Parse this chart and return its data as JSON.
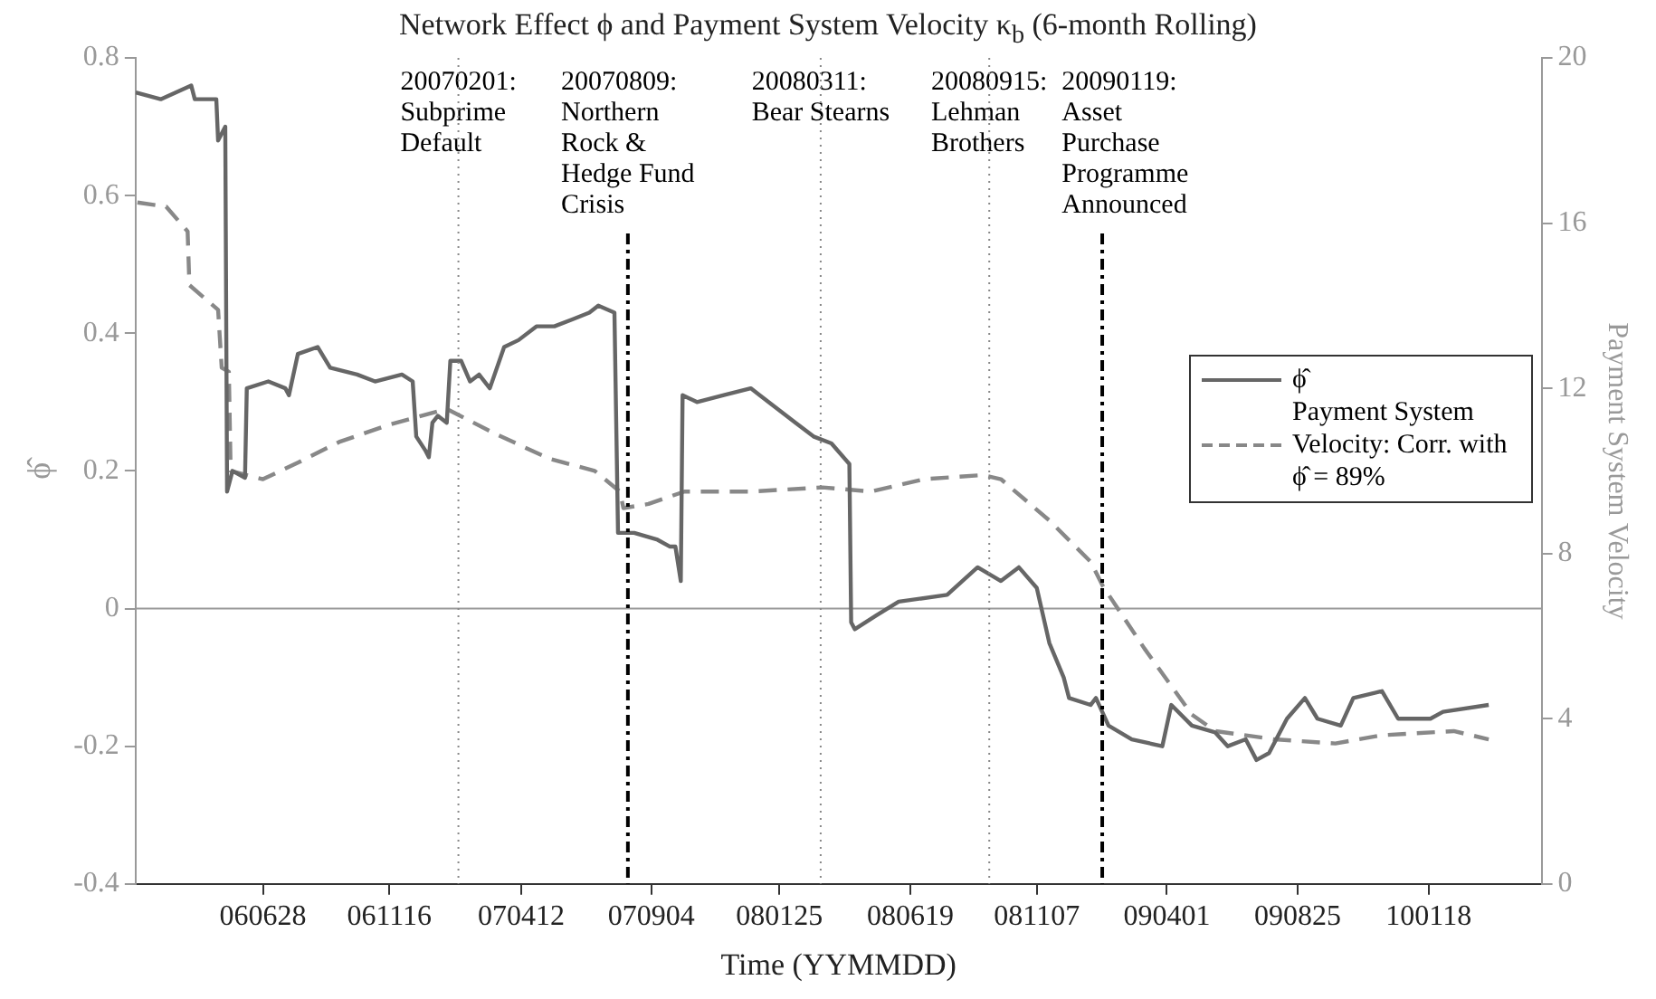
{
  "chart_data": {
    "type": "line",
    "title": "Network Effect ϕ and Payment System Velocity κ$_{b}$ (6-month Rolling)",
    "xlabel": "Time (YYMMDD)",
    "ylabel": "ϕ̂",
    "y2label": "Payment System Velocity",
    "xlim": [
      "2006-02-06",
      "2010-05-24"
    ],
    "xticks": [
      {
        "value": "2006-06-28",
        "label": "060628"
      },
      {
        "value": "2006-11-16",
        "label": "061116"
      },
      {
        "value": "2007-04-12",
        "label": "070412"
      },
      {
        "value": "2007-09-04",
        "label": "070904"
      },
      {
        "value": "2008-01-25",
        "label": "080125"
      },
      {
        "value": "2008-06-19",
        "label": "080619"
      },
      {
        "value": "2008-11-07",
        "label": "081107"
      },
      {
        "value": "2009-04-01",
        "label": "090401"
      },
      {
        "value": "2009-08-25",
        "label": "090825"
      },
      {
        "value": "2010-01-18",
        "label": "100118"
      }
    ],
    "ylim": [
      -0.4,
      0.8
    ],
    "yticks": [
      -0.4,
      -0.2,
      0,
      0.2,
      0.4,
      0.6,
      0.8
    ],
    "y2lim": [
      0,
      20
    ],
    "y2ticks": [
      0,
      4,
      8,
      12,
      16,
      20
    ],
    "grid": false,
    "legend": "right",
    "series": [
      {
        "name": "ϕ̂",
        "color": "#666666",
        "line_style": "solid",
        "x": [
          "2006-02-06",
          "2006-03-06",
          "2006-04-09",
          "2006-04-13",
          "2006-05-07",
          "2006-05-09",
          "2006-05-17",
          "2006-05-19",
          "2006-05-25",
          "2006-06-08",
          "2006-06-10",
          "2006-07-04",
          "2006-07-23",
          "2006-07-27",
          "2006-08-06",
          "2006-08-28",
          "2006-09-11",
          "2006-10-11",
          "2006-10-31",
          "2006-11-30",
          "2006-12-12",
          "2006-12-16",
          "2006-12-26",
          "2006-12-30",
          "2007-01-03",
          "2007-01-09",
          "2007-01-19",
          "2007-01-23",
          "2007-02-04",
          "2007-02-14",
          "2007-02-24",
          "2007-03-08",
          "2007-03-24",
          "2007-04-09",
          "2007-04-29",
          "2007-05-19",
          "2007-06-08",
          "2007-06-27",
          "2007-07-07",
          "2007-07-25",
          "2007-07-29",
          "2007-08-16",
          "2007-09-11",
          "2007-09-25",
          "2007-10-01",
          "2007-10-07",
          "2007-10-09",
          "2007-10-25",
          "2007-11-24",
          "2007-12-24",
          "2008-01-03",
          "2008-01-23",
          "2008-02-12",
          "2008-03-03",
          "2008-03-23",
          "2008-04-12",
          "2008-04-14",
          "2008-04-18",
          "2008-05-12",
          "2008-06-06",
          "2008-07-30",
          "2008-09-02",
          "2008-09-28",
          "2008-10-18",
          "2008-11-07",
          "2008-11-21",
          "2008-12-07",
          "2008-12-13",
          "2009-01-06",
          "2009-01-12",
          "2009-01-26",
          "2009-02-21",
          "2009-03-27",
          "2009-04-06",
          "2009-04-29",
          "2009-05-25",
          "2009-06-08",
          "2009-06-28",
          "2009-07-10",
          "2009-07-24",
          "2009-08-13",
          "2009-09-02",
          "2009-09-16",
          "2009-10-12",
          "2009-10-26",
          "2009-11-27",
          "2009-12-15",
          "2010-01-20",
          "2010-02-03",
          "2010-03-26"
        ],
        "values": [
          0.75,
          0.74,
          0.76,
          0.74,
          0.74,
          0.68,
          0.7,
          0.17,
          0.2,
          0.19,
          0.32,
          0.33,
          0.32,
          0.31,
          0.37,
          0.38,
          0.35,
          0.34,
          0.33,
          0.34,
          0.33,
          0.25,
          0.23,
          0.22,
          0.27,
          0.28,
          0.27,
          0.36,
          0.36,
          0.33,
          0.34,
          0.32,
          0.38,
          0.39,
          0.41,
          0.41,
          0.42,
          0.43,
          0.44,
          0.43,
          0.11,
          0.11,
          0.1,
          0.09,
          0.09,
          0.04,
          0.31,
          0.3,
          0.31,
          0.32,
          0.31,
          0.29,
          0.27,
          0.25,
          0.24,
          0.21,
          -0.02,
          -0.03,
          -0.01,
          0.01,
          0.02,
          0.06,
          0.04,
          0.06,
          0.03,
          -0.05,
          -0.1,
          -0.13,
          -0.14,
          -0.13,
          -0.17,
          -0.19,
          -0.2,
          -0.14,
          -0.17,
          -0.18,
          -0.2,
          -0.19,
          -0.22,
          -0.21,
          -0.16,
          -0.13,
          -0.16,
          -0.17,
          -0.13,
          -0.12,
          -0.16,
          -0.16,
          -0.15,
          -0.14
        ]
      },
      {
        "name": "Payment System Velocity: Corr. with ϕ̂ = 89%",
        "color": "#888888",
        "line_style": "dashed",
        "axis": "y2",
        "x": [
          "2006-02-08",
          "2006-03-12",
          "2006-04-05",
          "2006-04-07",
          "2006-05-09",
          "2006-05-13",
          "2006-05-21",
          "2006-05-23",
          "2006-06-28",
          "2006-08-06",
          "2006-09-21",
          "2006-11-13",
          "2007-01-19",
          "2007-03-14",
          "2007-05-13",
          "2007-07-03",
          "2007-07-31",
          "2007-08-04",
          "2007-09-01",
          "2007-10-11",
          "2007-12-24",
          "2008-03-13",
          "2008-05-06",
          "2008-07-04",
          "2008-09-08",
          "2008-09-28",
          "2008-11-21",
          "2009-01-06",
          "2009-01-20",
          "2009-03-07",
          "2009-04-29",
          "2009-05-25",
          "2009-07-30",
          "2009-10-06",
          "2009-11-27",
          "2010-02-15",
          "2010-03-26"
        ],
        "values": [
          16.5,
          16.4,
          15.8,
          14.5,
          13.9,
          12.5,
          12.4,
          10.0,
          9.8,
          10.2,
          10.7,
          11.1,
          11.5,
          10.9,
          10.3,
          10.0,
          9.5,
          9.1,
          9.2,
          9.5,
          9.5,
          9.6,
          9.5,
          9.8,
          9.9,
          9.8,
          8.8,
          7.8,
          7.2,
          5.7,
          4.1,
          3.7,
          3.5,
          3.4,
          3.6,
          3.7,
          3.5
        ]
      }
    ],
    "ref_lines": [
      {
        "axis": "y",
        "value": 0,
        "color": "#999999",
        "line_style": "solid"
      },
      {
        "axis": "x",
        "value": "2007-02-01",
        "label": "20070201: Subprime Default",
        "color": "#888888",
        "line_style": "dotted"
      },
      {
        "axis": "x",
        "value": "2007-08-09",
        "label": "20070809: Northern Rock & Hedge Fund Crisis",
        "color": "#000000",
        "line_style": "dashed"
      },
      {
        "axis": "x",
        "value": "2008-03-11",
        "label": "20080311: Bear Stearns",
        "color": "#888888",
        "line_style": "dotted"
      },
      {
        "axis": "x",
        "value": "2008-09-15",
        "label": "20080915: Lehman Brothers",
        "color": "#888888",
        "line_style": "dotted"
      },
      {
        "axis": "x",
        "value": "2009-01-19",
        "label": "20090119: Asset Purchase Programme Announced",
        "color": "#000000",
        "line_style": "dashed"
      }
    ]
  }
}
